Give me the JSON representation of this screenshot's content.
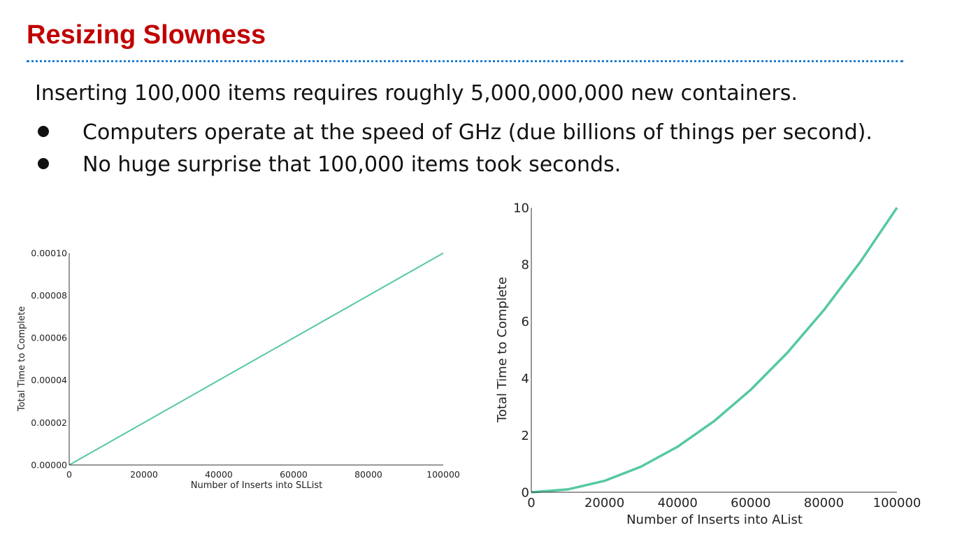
{
  "slide": {
    "title": "Resizing Slowness",
    "body": "Inserting 100,000 items requires roughly 5,000,000,000 new containers.",
    "bullets": [
      "Computers operate at the speed of GHz (due billions of things per second).",
      "No huge surprise that 100,000 items took seconds."
    ]
  },
  "colors": {
    "title": "#c00000",
    "rule": "#1f7fd1",
    "series": "#55c8a3"
  },
  "chart_data": [
    {
      "type": "line",
      "xlabel": "Number of Inserts into SLList",
      "ylabel": "Total Time to Complete",
      "xlim": [
        0,
        100000
      ],
      "ylim": [
        0,
        0.0001
      ],
      "xticks": [
        "0",
        "20000",
        "40000",
        "60000",
        "80000",
        "100000"
      ],
      "yticks": [
        "0.00000",
        "0.00002",
        "0.00004",
        "0.00006",
        "0.00008",
        "0.00010"
      ],
      "grid": false,
      "series": [
        {
          "x": [
            0,
            20000,
            40000,
            60000,
            80000,
            100000
          ],
          "y": [
            0,
            2e-05,
            4e-05,
            6e-05,
            8e-05,
            0.0001
          ]
        }
      ]
    },
    {
      "type": "line",
      "xlabel": "Number of Inserts into AList",
      "ylabel": "Total Time to Complete",
      "xlim": [
        0,
        100000
      ],
      "ylim": [
        0,
        10
      ],
      "xticks": [
        "0",
        "20000",
        "40000",
        "60000",
        "80000",
        "100000"
      ],
      "yticks": [
        "0",
        "2",
        "4",
        "6",
        "8",
        "10"
      ],
      "grid": false,
      "series": [
        {
          "x": [
            0,
            10000,
            20000,
            30000,
            40000,
            50000,
            60000,
            70000,
            80000,
            90000,
            100000
          ],
          "y": [
            0,
            0.1,
            0.4,
            0.9,
            1.6,
            2.5,
            3.6,
            4.9,
            6.4,
            8.1,
            10
          ]
        }
      ]
    }
  ]
}
